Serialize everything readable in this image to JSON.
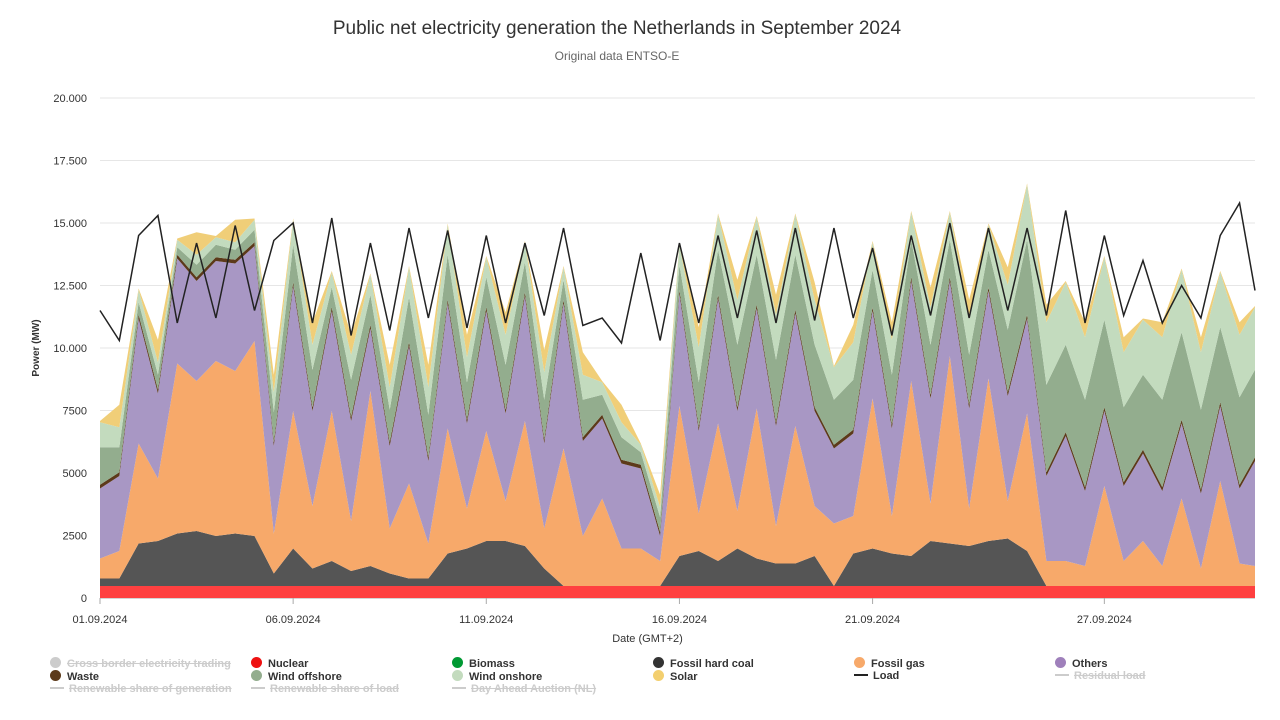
{
  "chart": {
    "title": "Public net electricity generation the Netherlands in September 2024",
    "subtitle": "Original data ENTSO-E"
  },
  "chart_data": {
    "type": "area",
    "stacked": true,
    "title": "Public net electricity generation the Netherlands in September 2024",
    "subtitle": "Original data ENTSO-E",
    "xlabel": "Date (GMT+2)",
    "ylabel": "Power (MW)",
    "ylim": [
      0,
      20000
    ],
    "yticks": [
      0,
      2500,
      5000,
      7500,
      10000,
      12500,
      15000,
      17500,
      20000
    ],
    "ytick_labels": [
      "0",
      "2500",
      "5000",
      "7500",
      "10.000",
      "12.500",
      "15.000",
      "17.500",
      "20.000"
    ],
    "xlim": [
      1.0,
      30.9
    ],
    "xticks": [
      1,
      6,
      11,
      16,
      21,
      27
    ],
    "xtick_labels": [
      "01.09.2024",
      "06.09.2024",
      "11.09.2024",
      "16.09.2024",
      "21.09.2024",
      "27.09.2024"
    ],
    "grid": true,
    "legend_position": "bottom",
    "x": [
      1.0,
      1.5,
      2.0,
      2.5,
      3.0,
      3.5,
      4.0,
      4.5,
      5.0,
      5.5,
      6.0,
      6.5,
      7.0,
      7.5,
      8.0,
      8.5,
      9.0,
      9.5,
      10.0,
      10.5,
      11.0,
      11.5,
      12.0,
      12.5,
      13.0,
      13.5,
      14.0,
      14.5,
      15.0,
      15.5,
      16.0,
      16.5,
      17.0,
      17.5,
      18.0,
      18.5,
      19.0,
      19.5,
      20.0,
      20.5,
      21.0,
      21.5,
      22.0,
      22.5,
      23.0,
      23.5,
      24.0,
      24.5,
      25.0,
      25.5,
      26.0,
      26.5,
      27.0,
      27.5,
      28.0,
      28.5,
      29.0,
      29.5,
      30.0,
      30.5,
      30.9
    ],
    "series": [
      {
        "name": "Nuclear",
        "color": "#ff4040",
        "values": [
          480,
          480,
          480,
          480,
          480,
          480,
          480,
          480,
          480,
          480,
          480,
          480,
          480,
          480,
          480,
          480,
          480,
          480,
          480,
          480,
          480,
          480,
          480,
          480,
          480,
          480,
          480,
          480,
          480,
          480,
          480,
          480,
          480,
          480,
          480,
          480,
          480,
          480,
          480,
          480,
          480,
          480,
          480,
          480,
          480,
          480,
          480,
          480,
          480,
          480,
          480,
          480,
          480,
          480,
          480,
          480,
          480,
          480,
          480,
          480,
          480
        ]
      },
      {
        "name": "Fossil hard coal",
        "color": "#555555",
        "values": [
          300,
          300,
          1700,
          1800,
          2100,
          2200,
          2000,
          2100,
          2000,
          500,
          1500,
          700,
          1000,
          600,
          800,
          500,
          300,
          300,
          1300,
          1500,
          1800,
          1800,
          1600,
          700,
          0,
          0,
          0,
          0,
          0,
          0,
          1200,
          1400,
          1000,
          1500,
          1100,
          900,
          900,
          1200,
          0,
          1300,
          1500,
          1300,
          1200,
          1800,
          1700,
          1600,
          1800,
          1900,
          1400,
          0,
          0,
          0,
          0,
          0,
          0,
          0,
          0,
          0,
          0,
          0,
          0
        ]
      },
      {
        "name": "Fossil gas",
        "color": "#f7a96a",
        "values": [
          800,
          1100,
          4000,
          2500,
          6800,
          6000,
          7000,
          6500,
          7800,
          1600,
          5500,
          2500,
          6000,
          2000,
          7000,
          1800,
          3800,
          1400,
          5000,
          1600,
          4400,
          1600,
          5000,
          1600,
          5500,
          2000,
          3500,
          1500,
          1500,
          1000,
          6000,
          1500,
          5500,
          1500,
          6000,
          1500,
          5500,
          2000,
          2500,
          1500,
          6000,
          1500,
          7000,
          1500,
          7500,
          1500,
          6500,
          1500,
          5500,
          1000,
          1000,
          800,
          4000,
          1000,
          1800,
          800,
          3500,
          700,
          4200,
          900,
          800
        ]
      },
      {
        "name": "Others",
        "color": "#a897c4",
        "values": [
          2800,
          3000,
          5000,
          3400,
          4200,
          4000,
          4000,
          4300,
          3800,
          3500,
          5000,
          3800,
          4000,
          4000,
          2500,
          3300,
          5500,
          3300,
          5000,
          3400,
          4800,
          3500,
          5000,
          3400,
          5800,
          3800,
          3200,
          3400,
          3200,
          1000,
          4500,
          3300,
          5000,
          4000,
          4000,
          4000,
          4500,
          3800,
          3000,
          3300,
          3500,
          3500,
          4000,
          4200,
          3000,
          4000,
          3500,
          4200,
          3800,
          3400,
          5000,
          3000,
          3000,
          3000,
          3500,
          3000,
          3000,
          3000,
          3000,
          3000,
          4200
        ]
      },
      {
        "name": "Waste",
        "color": "#5c3a1a",
        "values": [
          150,
          150,
          150,
          150,
          150,
          150,
          150,
          150,
          150,
          150,
          150,
          150,
          150,
          150,
          150,
          150,
          150,
          150,
          150,
          150,
          150,
          150,
          150,
          150,
          150,
          150,
          150,
          150,
          150,
          150,
          150,
          150,
          150,
          150,
          150,
          150,
          150,
          150,
          150,
          150,
          150,
          150,
          150,
          150,
          150,
          150,
          150,
          150,
          150,
          150,
          150,
          150,
          150,
          150,
          150,
          150,
          150,
          150,
          150,
          150,
          150
        ]
      },
      {
        "name": "Wind offshore",
        "color": "#93ad8e",
        "values": [
          1500,
          1000,
          500,
          600,
          300,
          500,
          500,
          400,
          500,
          1200,
          1500,
          1500,
          800,
          1500,
          1200,
          1300,
          1800,
          1700,
          1800,
          1500,
          1200,
          1800,
          1200,
          1600,
          800,
          1500,
          800,
          900,
          500,
          600,
          1000,
          1800,
          1800,
          2500,
          2000,
          2500,
          2200,
          2500,
          1800,
          2000,
          1500,
          2000,
          1500,
          2000,
          1500,
          2000,
          1500,
          2500,
          3000,
          3500,
          3500,
          3500,
          3500,
          3000,
          3000,
          3500,
          3500,
          3200,
          3000,
          3500,
          3500
        ]
      },
      {
        "name": "Wind onshore",
        "color": "#c3dbbe",
        "values": [
          1000,
          800,
          500,
          500,
          300,
          400,
          300,
          300,
          400,
          800,
          1000,
          1000,
          600,
          1000,
          800,
          900,
          1200,
          1100,
          1200,
          1000,
          800,
          1200,
          800,
          1100,
          500,
          1000,
          500,
          600,
          300,
          400,
          800,
          1400,
          1400,
          1800,
          1500,
          1800,
          1600,
          1800,
          1300,
          1500,
          1100,
          1400,
          1100,
          1500,
          1100,
          1500,
          1000,
          1800,
          2200,
          2500,
          2500,
          2500,
          2500,
          2200,
          2200,
          2500,
          2500,
          2300,
          2200,
          2500,
          2500
        ]
      },
      {
        "name": "Solar",
        "color": "#f0ce78",
        "values": [
          50,
          900,
          50,
          900,
          50,
          900,
          50,
          900,
          50,
          700,
          50,
          900,
          50,
          800,
          50,
          900,
          50,
          900,
          50,
          900,
          50,
          900,
          50,
          900,
          50,
          900,
          50,
          700,
          50,
          500,
          50,
          800,
          50,
          800,
          50,
          800,
          50,
          700,
          50,
          700,
          50,
          700,
          50,
          800,
          50,
          700,
          50,
          700,
          50,
          700,
          50,
          600,
          50,
          600,
          50,
          600,
          50,
          600,
          50,
          500,
          50
        ]
      }
    ],
    "load": {
      "name": "Load",
      "color": "#222222",
      "values": [
        11500,
        10300,
        14500,
        15300,
        11000,
        14200,
        11200,
        14900,
        11500,
        14300,
        15000,
        11000,
        15200,
        10500,
        14200,
        10700,
        14800,
        11200,
        14700,
        10800,
        14500,
        11000,
        14200,
        11300,
        14800,
        10900,
        11200,
        10200,
        13800,
        10300,
        14200,
        11000,
        14500,
        11200,
        14700,
        11000,
        14800,
        11100,
        14800,
        11200,
        14000,
        10500,
        14500,
        11300,
        15000,
        11200,
        14800,
        11500,
        14800,
        11300,
        15500,
        11000,
        14500,
        11300,
        13500,
        11000,
        12500,
        11200,
        14500,
        15800,
        12300
      ]
    },
    "legend": [
      {
        "name": "Cross border electricity trading",
        "color": "#cccccc",
        "symbol": "dot",
        "enabled": false
      },
      {
        "name": "Nuclear",
        "color": "#ee1111",
        "symbol": "dot",
        "enabled": true
      },
      {
        "name": "Biomass",
        "color": "#009933",
        "symbol": "dot",
        "enabled": true
      },
      {
        "name": "Fossil hard coal",
        "color": "#333333",
        "symbol": "dot",
        "enabled": true
      },
      {
        "name": "Fossil gas",
        "color": "#f7a96a",
        "symbol": "dot",
        "enabled": true
      },
      {
        "name": "Others",
        "color": "#9f80bb",
        "symbol": "dot",
        "enabled": true
      },
      {
        "name": "Waste",
        "color": "#5c3a1a",
        "symbol": "dot",
        "enabled": true
      },
      {
        "name": "Wind offshore",
        "color": "#93ad8e",
        "symbol": "dot",
        "enabled": true
      },
      {
        "name": "Wind onshore",
        "color": "#c3dbbe",
        "symbol": "dot",
        "enabled": true
      },
      {
        "name": "Solar",
        "color": "#f3cf6f",
        "symbol": "dot",
        "enabled": true
      },
      {
        "name": "Load",
        "color": "#222222",
        "symbol": "line",
        "enabled": true
      },
      {
        "name": "Residual load",
        "color": "#cccccc",
        "symbol": "line",
        "enabled": false
      },
      {
        "name": "Renewable share of generation",
        "color": "#cccccc",
        "symbol": "line",
        "enabled": false
      },
      {
        "name": "Renewable share of load",
        "color": "#cccccc",
        "symbol": "line",
        "enabled": false
      },
      {
        "name": "Day Ahead Auction (NL)",
        "color": "#cccccc",
        "symbol": "line",
        "enabled": false
      }
    ]
  }
}
